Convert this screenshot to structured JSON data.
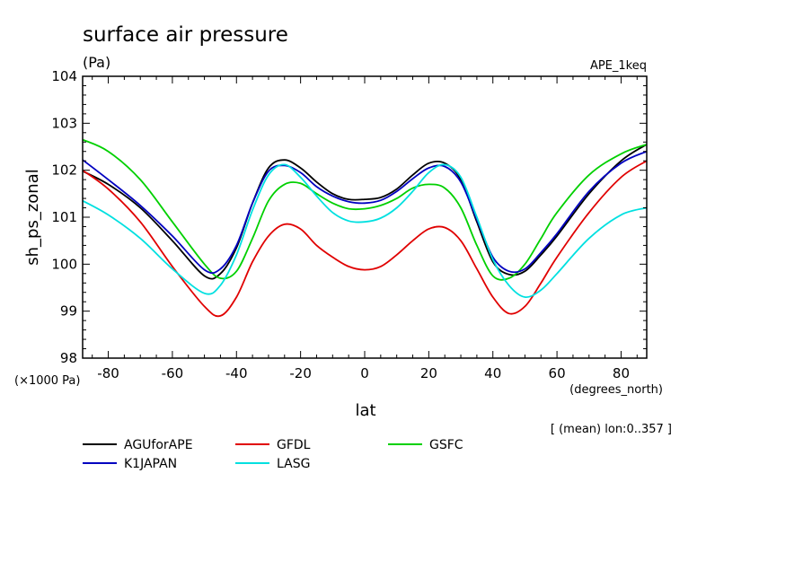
{
  "chart_data": {
    "type": "line",
    "title": "surface air pressure",
    "units": "(Pa)",
    "experiment": "APE_1keq",
    "xlabel": "lat",
    "ylabel": "sh_ps_zonal",
    "x_units": "(degrees_north)",
    "y_scale_note": "(×1000 Pa)",
    "subset_note": "[ (mean) lon:0..357 ]",
    "xlim": [
      -88,
      88
    ],
    "ylim": [
      98,
      104
    ],
    "x_ticks": [
      -80,
      -60,
      -40,
      -20,
      0,
      20,
      40,
      60,
      80
    ],
    "y_ticks": [
      98,
      99,
      100,
      101,
      102,
      103,
      104
    ],
    "x_tick_labels": [
      "-80",
      "-60",
      "-40",
      "-20",
      "0",
      "20",
      "40",
      "60",
      "80"
    ],
    "y_tick_labels": [
      "98",
      "99",
      "100",
      "101",
      "102",
      "103",
      "104"
    ],
    "grid": false,
    "legend_position": "bottom",
    "x": [
      -88,
      -80,
      -70,
      -60,
      -50,
      -45,
      -40,
      -35,
      -30,
      -25,
      -20,
      -15,
      -10,
      -5,
      0,
      5,
      10,
      15,
      20,
      25,
      30,
      35,
      40,
      45,
      50,
      55,
      60,
      70,
      80,
      88
    ],
    "series": [
      {
        "name": "AGUforAPE",
        "color": "#000000",
        "values": [
          101.98,
          101.7,
          101.2,
          100.5,
          99.75,
          99.8,
          100.35,
          101.3,
          102.05,
          102.22,
          102.05,
          101.75,
          101.5,
          101.38,
          101.38,
          101.42,
          101.6,
          101.9,
          102.15,
          102.15,
          101.8,
          100.9,
          100.05,
          99.78,
          99.85,
          100.2,
          100.6,
          101.5,
          102.2,
          102.55
        ]
      },
      {
        "name": "GFDL",
        "color": "#e00000",
        "values": [
          102.0,
          101.6,
          100.9,
          99.95,
          99.1,
          98.9,
          99.3,
          100.05,
          100.6,
          100.85,
          100.75,
          100.4,
          100.15,
          99.95,
          99.88,
          99.95,
          100.2,
          100.5,
          100.75,
          100.78,
          100.5,
          99.9,
          99.3,
          98.95,
          99.1,
          99.6,
          100.15,
          101.1,
          101.85,
          102.2
        ]
      },
      {
        "name": "GSFC",
        "color": "#00d000",
        "values": [
          102.65,
          102.4,
          101.8,
          100.9,
          100.0,
          99.7,
          99.85,
          100.55,
          101.35,
          101.7,
          101.72,
          101.5,
          101.3,
          101.18,
          101.18,
          101.25,
          101.4,
          101.62,
          101.7,
          101.62,
          101.2,
          100.4,
          99.75,
          99.7,
          100.0,
          100.55,
          101.1,
          101.9,
          102.35,
          102.55
        ]
      },
      {
        "name": "K1JAPAN",
        "color": "#0000c0",
        "values": [
          102.22,
          101.8,
          101.25,
          100.6,
          99.88,
          99.9,
          100.4,
          101.3,
          101.98,
          102.1,
          101.95,
          101.65,
          101.45,
          101.33,
          101.3,
          101.36,
          101.55,
          101.82,
          102.05,
          102.08,
          101.75,
          100.95,
          100.15,
          99.85,
          99.9,
          100.25,
          100.65,
          101.55,
          102.15,
          102.4
        ]
      },
      {
        "name": "LASG",
        "color": "#00e0e0",
        "values": [
          101.35,
          101.05,
          100.55,
          99.9,
          99.38,
          99.55,
          100.2,
          101.15,
          101.9,
          102.12,
          101.85,
          101.45,
          101.1,
          100.92,
          100.9,
          100.98,
          101.2,
          101.55,
          101.95,
          102.12,
          101.85,
          101.0,
          100.1,
          99.55,
          99.3,
          99.45,
          99.8,
          100.55,
          101.05,
          101.2
        ]
      }
    ]
  }
}
